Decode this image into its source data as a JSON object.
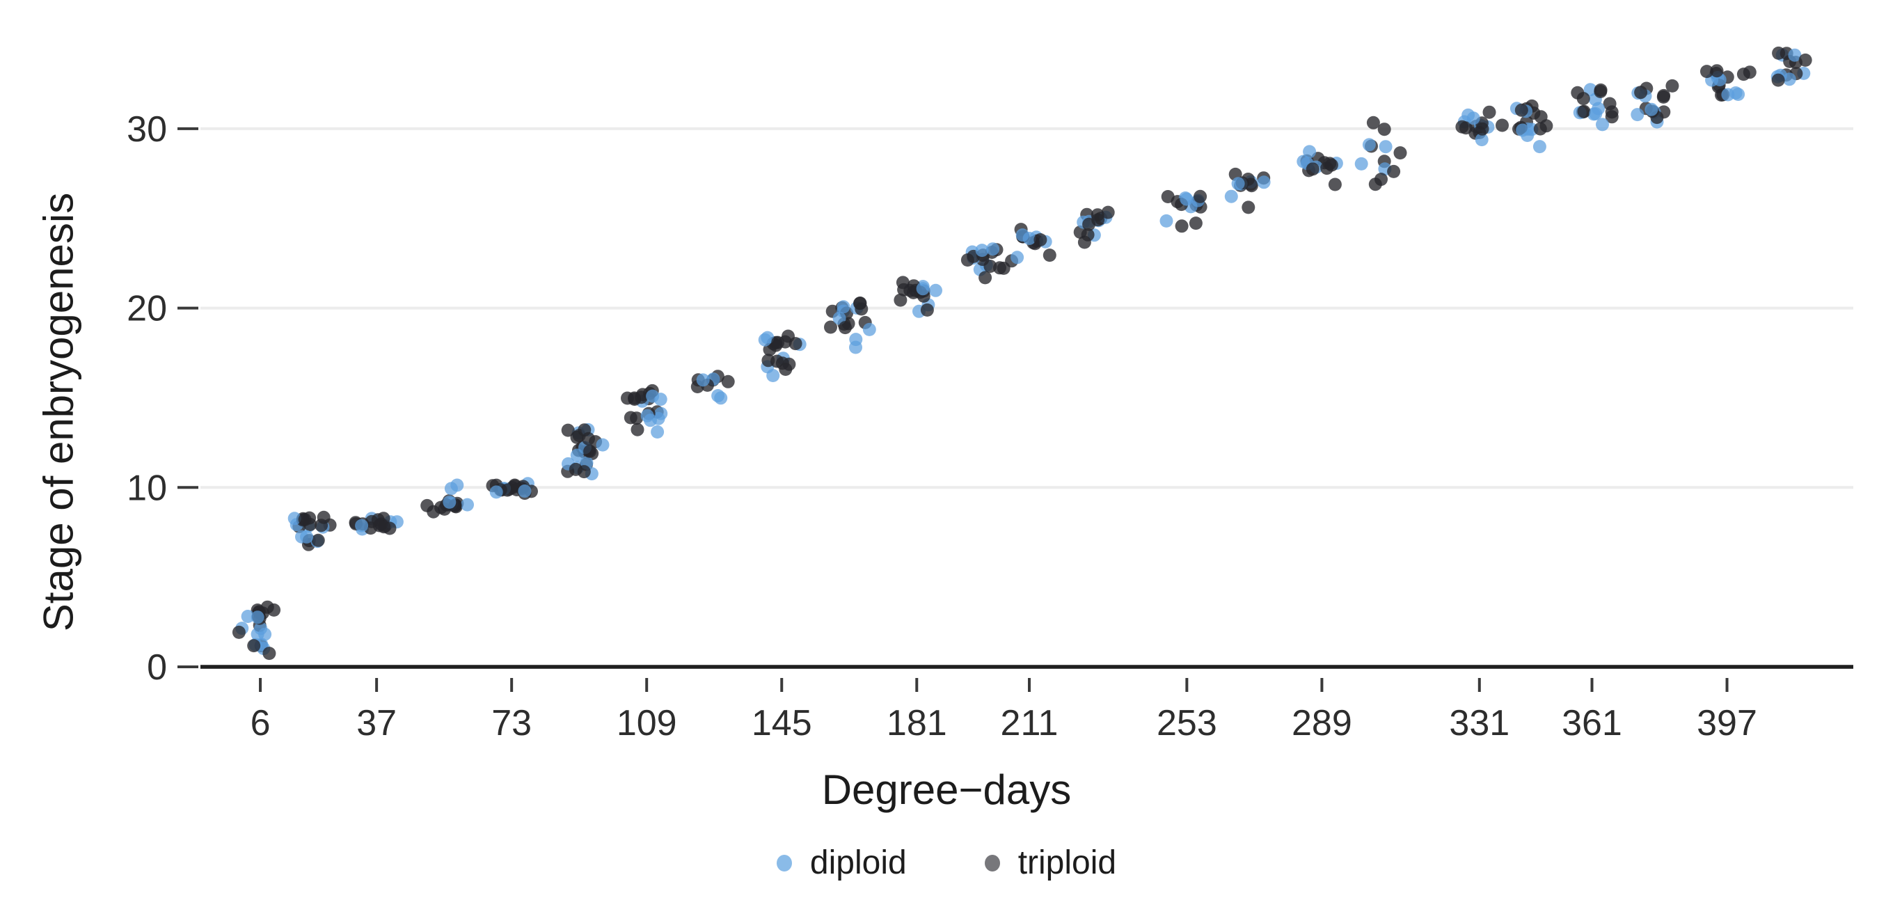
{
  "chart_data": {
    "type": "scatter",
    "title": "",
    "xlabel": "Degree−days",
    "ylabel": "Stage of enbryogenesis",
    "x_ticks": [
      6,
      37,
      73,
      109,
      145,
      181,
      211,
      253,
      289,
      331,
      361,
      397
    ],
    "y_ticks": [
      0,
      10,
      20,
      30
    ],
    "xlim": [
      -8,
      436
    ],
    "ylim": [
      0,
      35
    ],
    "grid": "horizontal gridlines at y = 10, 20, 30",
    "legend_position": "bottom-center",
    "background_color": "#ffffff",
    "gridline_color": "#ececec",
    "axis_line_color": "#1f1f1f",
    "tick_color": "#3a3a3a",
    "tick_label_color": "#2d2d2d",
    "point_style": {
      "radius_px": 9.5,
      "x_jitter_units": 6.5,
      "stage_jitter_units": 0.48
    },
    "series": [
      {
        "name": "diploid",
        "color": "#5c9ede",
        "opacity": 0.72,
        "legend_color": "#8abbe8"
      },
      {
        "name": "triploid",
        "color": "#26272b",
        "opacity": 0.78,
        "legend_color": "#77777b"
      }
    ],
    "clusters": [
      {
        "x": 6,
        "triploid": {
          "3": 8,
          "2": 2,
          "1": 3
        },
        "diploid": {
          "2": 4,
          "1": 3,
          "3": 2
        }
      },
      {
        "x": 20,
        "triploid": {
          "8": 9,
          "7": 3
        },
        "diploid": {
          "8": 4,
          "7": 3
        }
      },
      {
        "x": 37,
        "triploid": {
          "8": 12
        },
        "diploid": {
          "8": 5
        }
      },
      {
        "x": 55,
        "triploid": {
          "9": 12
        },
        "diploid": {
          "9": 4,
          "10": 2
        }
      },
      {
        "x": 73,
        "triploid": {
          "10": 14
        },
        "diploid": {
          "10": 6
        }
      },
      {
        "x": 91,
        "triploid": {
          "13": 6,
          "12": 6,
          "11": 4
        },
        "diploid": {
          "13": 2,
          "12": 3,
          "11": 4
        }
      },
      {
        "x": 109,
        "triploid": {
          "15": 8,
          "14": 4,
          "13": 1
        },
        "diploid": {
          "15": 3,
          "14": 4,
          "13": 1
        }
      },
      {
        "x": 126,
        "triploid": {
          "16": 6
        },
        "diploid": {
          "16": 2,
          "15": 2
        }
      },
      {
        "x": 145,
        "triploid": {
          "18": 8,
          "17": 5
        },
        "diploid": {
          "18": 3,
          "17": 2,
          "16": 1
        }
      },
      {
        "x": 163,
        "triploid": {
          "20": 6,
          "19": 5
        },
        "diploid": {
          "20": 3,
          "19": 2,
          "18": 2
        }
      },
      {
        "x": 181,
        "triploid": {
          "21": 9,
          "20": 2
        },
        "diploid": {
          "21": 4,
          "20": 2
        }
      },
      {
        "x": 199,
        "triploid": {
          "23": 6,
          "22": 4
        },
        "diploid": {
          "23": 4,
          "22": 2
        }
      },
      {
        "x": 211,
        "triploid": {
          "24": 7,
          "23": 2
        },
        "diploid": {
          "24": 4,
          "23": 1
        }
      },
      {
        "x": 228,
        "triploid": {
          "25": 6,
          "24": 3
        },
        "diploid": {
          "25": 4,
          "24": 1
        }
      },
      {
        "x": 253,
        "triploid": {
          "26": 7,
          "25": 2
        },
        "diploid": {
          "26": 4,
          "25": 1
        }
      },
      {
        "x": 268,
        "triploid": {
          "27": 7,
          "26": 1
        },
        "diploid": {
          "27": 4,
          "26": 1
        }
      },
      {
        "x": 289,
        "triploid": {
          "28": 8,
          "27": 1
        },
        "diploid": {
          "28": 4,
          "29": 1
        }
      },
      {
        "x": 305,
        "triploid": {
          "30": 2,
          "29": 2,
          "28": 2,
          "27": 2
        },
        "diploid": {
          "29": 2,
          "28": 2
        }
      },
      {
        "x": 331,
        "triploid": {
          "30": 8,
          "31": 1
        },
        "diploid": {
          "30": 4,
          "31": 2,
          "29": 1
        }
      },
      {
        "x": 345,
        "triploid": {
          "30": 5,
          "31": 5
        },
        "diploid": {
          "30": 4,
          "31": 2,
          "29": 1
        }
      },
      {
        "x": 361,
        "triploid": {
          "31": 5,
          "32": 4
        },
        "diploid": {
          "31": 4,
          "32": 2,
          "30": 1
        }
      },
      {
        "x": 378,
        "triploid": {
          "31": 4,
          "32": 5
        },
        "diploid": {
          "31": 3,
          "32": 2,
          "30": 1
        }
      },
      {
        "x": 397,
        "triploid": {
          "33": 6,
          "32": 4
        },
        "diploid": {
          "33": 3,
          "32": 3
        }
      },
      {
        "x": 413,
        "triploid": {
          "34": 5,
          "33": 3
        },
        "diploid": {
          "33": 4,
          "34": 2
        }
      }
    ]
  }
}
